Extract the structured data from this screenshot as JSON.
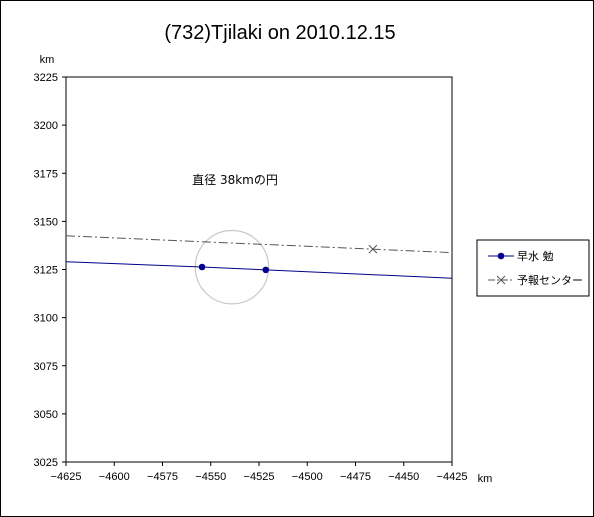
{
  "chart_data": {
    "type": "line",
    "title": "(732)Tjilaki on 2010.12.15",
    "xlabel": "km",
    "ylabel": "km",
    "xlim": [
      -4625,
      -4425
    ],
    "ylim": [
      3025,
      3225
    ],
    "x_ticks": [
      -4625,
      -4600,
      -4575,
      -4550,
      -4525,
      -4500,
      -4475,
      -4450,
      -4425
    ],
    "y_ticks": [
      3025,
      3050,
      3075,
      3100,
      3125,
      3150,
      3175,
      3200,
      3225
    ],
    "x_tick_labels": [
      "−4625",
      "−4600",
      "−4575",
      "−4550",
      "−4525",
      "−4500",
      "−4475",
      "−4450",
      "−4425"
    ],
    "y_tick_labels": [
      "3025",
      "3050",
      "3075",
      "3100",
      "3125",
      "3150",
      "3175",
      "3200",
      "3225"
    ],
    "grid": false,
    "legend_position": "right",
    "series": [
      {
        "name": "早水 勉",
        "color": "#00008B",
        "style": "solid",
        "marker": "circle",
        "x": [
          -4625,
          -4554.5,
          -4521.5,
          -4425
        ],
        "y": [
          3129.0,
          3126.3,
          3124.8,
          3120.5
        ],
        "marker_x": [
          -4554.5,
          -4521.5
        ],
        "marker_y": [
          3126.3,
          3124.8
        ]
      },
      {
        "name": "予報センター",
        "color": "#555555",
        "style": "dash-dot",
        "marker": "x",
        "x": [
          -4625,
          -4425
        ],
        "y": [
          3142.5,
          3133.8
        ],
        "marker_x": [
          -4466
        ],
        "marker_y": [
          3135.6
        ]
      }
    ],
    "circle": {
      "cx": -4539,
      "cy": 3126.2,
      "r": 19,
      "color": "#c8c8c8"
    },
    "annotation": {
      "text": "直径 38kmの円",
      "x": -4560,
      "y": 3168
    }
  }
}
